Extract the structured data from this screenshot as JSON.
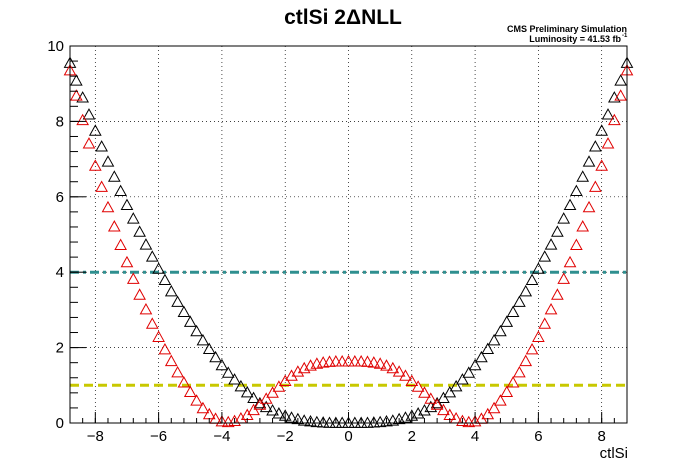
{
  "chart_data": {
    "type": "scatter",
    "title": "ctlSi 2ΔNLL",
    "xlabel": "ctlSi",
    "ylabel": "",
    "xlim": [
      -8.8,
      8.8
    ],
    "ylim": [
      0,
      10
    ],
    "xticks": [
      -8,
      -6,
      -4,
      -2,
      0,
      2,
      4,
      6,
      8
    ],
    "yticks": [
      0,
      2,
      4,
      6,
      8,
      10
    ],
    "x_tick_labels": [
      "−8",
      "−6",
      "−4",
      "−2",
      "0",
      "2",
      "4",
      "6",
      "8"
    ],
    "y_tick_labels": [
      "0",
      "2",
      "4",
      "6",
      "8",
      "10"
    ],
    "grid": true,
    "annotations": [
      "CMS Preliminary Simulation",
      "Luminosity = 41.53 fb"
    ],
    "annotation_superscript": "-1",
    "reference_lines": [
      {
        "y": 4,
        "color": "#2f8f8f",
        "style": "dash-dot"
      },
      {
        "y": 1,
        "color": "#c8c800",
        "style": "dashed"
      }
    ],
    "series": [
      {
        "marker": "open-triangle",
        "color": "#000000",
        "x": [
          -8.8,
          -8.6,
          -8.4,
          -8.2,
          -8.0,
          -7.8,
          -7.6,
          -7.4,
          -7.2,
          -7.0,
          -6.8,
          -6.6,
          -6.4,
          -6.2,
          -6.0,
          -5.8,
          -5.6,
          -5.4,
          -5.2,
          -5.0,
          -4.8,
          -4.6,
          -4.4,
          -4.2,
          -4.0,
          -3.8,
          -3.6,
          -3.4,
          -3.2,
          -3.0,
          -2.8,
          -2.6,
          -2.4,
          -2.2,
          -2.0,
          -1.8,
          -1.6,
          -1.4,
          -1.2,
          -1.0,
          -0.8,
          -0.6,
          -0.4,
          -0.2,
          0.0,
          0.2,
          0.4,
          0.6,
          0.8,
          1.0,
          1.2,
          1.4,
          1.6,
          1.8,
          2.0,
          2.2,
          2.4,
          2.6,
          2.8,
          3.0,
          3.2,
          3.4,
          3.6,
          3.8,
          4.0,
          4.2,
          4.4,
          4.6,
          4.8,
          5.0,
          5.2,
          5.4,
          5.6,
          5.8,
          6.0,
          6.2,
          6.4,
          6.6,
          6.8,
          7.0,
          7.2,
          7.4,
          7.6,
          7.8,
          8.0,
          8.2,
          8.4,
          8.6,
          8.8
        ],
        "y": [
          9.55,
          9.08,
          8.63,
          8.18,
          7.75,
          7.33,
          6.93,
          6.53,
          6.15,
          5.78,
          5.42,
          5.07,
          4.73,
          4.41,
          4.09,
          3.79,
          3.49,
          3.21,
          2.94,
          2.68,
          2.43,
          2.19,
          1.96,
          1.74,
          1.53,
          1.33,
          1.15,
          0.97,
          0.81,
          0.66,
          0.52,
          0.42,
          0.33,
          0.25,
          0.19,
          0.14,
          0.1,
          0.06,
          0.04,
          0.02,
          0.01,
          0.0,
          0.0,
          0.0,
          0.0,
          0.0,
          0.0,
          0.0,
          0.01,
          0.02,
          0.04,
          0.06,
          0.1,
          0.14,
          0.19,
          0.25,
          0.33,
          0.42,
          0.52,
          0.66,
          0.81,
          0.97,
          1.15,
          1.33,
          1.53,
          1.74,
          1.96,
          2.19,
          2.43,
          2.68,
          2.94,
          3.21,
          3.49,
          3.79,
          4.09,
          4.41,
          4.73,
          5.07,
          5.42,
          5.78,
          6.15,
          6.53,
          6.93,
          7.33,
          7.75,
          8.18,
          8.63,
          9.08,
          9.55
        ]
      },
      {
        "marker": "open-triangle",
        "color": "#e00000",
        "x": [
          -8.8,
          -8.6,
          -8.4,
          -8.2,
          -8.0,
          -7.8,
          -7.6,
          -7.4,
          -7.2,
          -7.0,
          -6.8,
          -6.6,
          -6.4,
          -6.2,
          -6.0,
          -5.8,
          -5.6,
          -5.4,
          -5.2,
          -5.0,
          -4.8,
          -4.6,
          -4.4,
          -4.2,
          -4.0,
          -3.8,
          -3.6,
          -3.4,
          -3.2,
          -3.0,
          -2.8,
          -2.6,
          -2.4,
          -2.2,
          -2.0,
          -1.8,
          -1.6,
          -1.4,
          -1.2,
          -1.0,
          -0.8,
          -0.6,
          -0.4,
          -0.2,
          0.0,
          0.2,
          0.4,
          0.6,
          0.8,
          1.0,
          1.2,
          1.4,
          1.6,
          1.8,
          2.0,
          2.2,
          2.4,
          2.6,
          2.8,
          3.0,
          3.2,
          3.4,
          3.6,
          3.8,
          4.0,
          4.2,
          4.4,
          4.6,
          4.8,
          5.0,
          5.2,
          5.4,
          5.6,
          5.8,
          6.0,
          6.2,
          6.4,
          6.6,
          6.8,
          7.0,
          7.2,
          7.4,
          7.6,
          7.8,
          8.0,
          8.2,
          8.4,
          8.6,
          8.8
        ],
        "y": [
          9.35,
          8.68,
          8.03,
          7.41,
          6.82,
          6.26,
          5.72,
          5.21,
          4.72,
          4.26,
          3.82,
          3.4,
          3.01,
          2.63,
          2.28,
          1.95,
          1.64,
          1.34,
          1.07,
          0.82,
          0.59,
          0.39,
          0.23,
          0.11,
          0.04,
          0.02,
          0.05,
          0.12,
          0.21,
          0.34,
          0.48,
          0.64,
          0.8,
          0.96,
          1.11,
          1.25,
          1.36,
          1.45,
          1.52,
          1.57,
          1.6,
          1.62,
          1.63,
          1.63,
          1.63,
          1.63,
          1.63,
          1.62,
          1.6,
          1.57,
          1.52,
          1.45,
          1.36,
          1.25,
          1.11,
          0.96,
          0.8,
          0.64,
          0.48,
          0.34,
          0.21,
          0.12,
          0.05,
          0.02,
          0.04,
          0.11,
          0.23,
          0.39,
          0.59,
          0.82,
          1.07,
          1.34,
          1.64,
          1.95,
          2.28,
          2.63,
          3.01,
          3.4,
          3.82,
          4.26,
          4.72,
          5.21,
          5.72,
          6.26,
          6.82,
          7.41,
          8.03,
          8.68,
          9.35
        ]
      }
    ]
  }
}
